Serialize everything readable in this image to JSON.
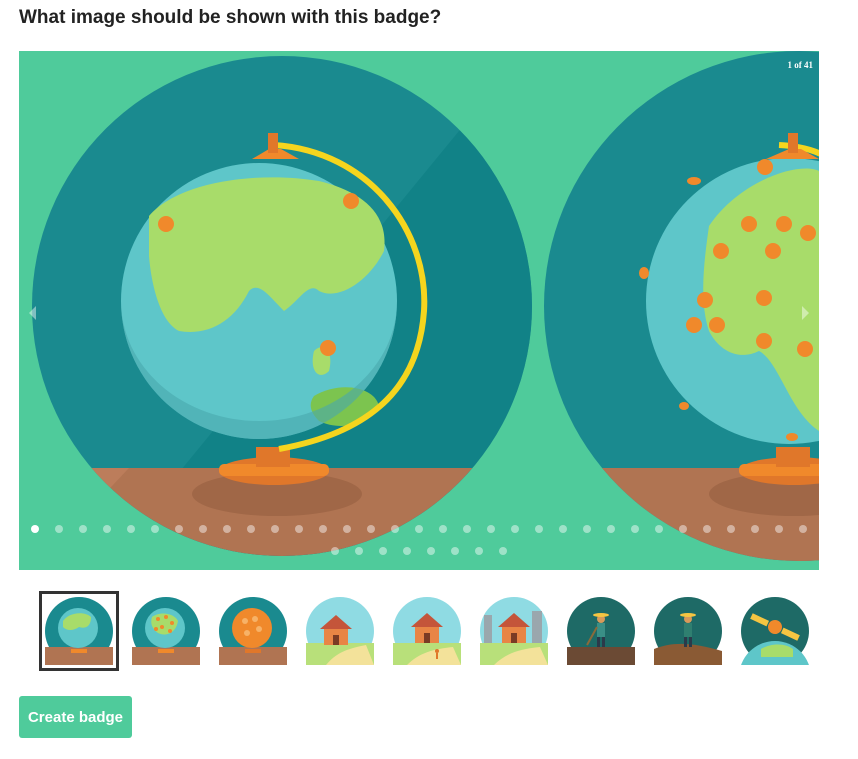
{
  "title": "What image should be shown with this badge?",
  "carousel": {
    "counter": "1 of 41",
    "total_slides": 41,
    "current_slide": 1,
    "prev_icon": "chevron-left-icon",
    "next_icon": "chevron-right-icon"
  },
  "thumbnails": [
    {
      "name": "globe-world",
      "selected": true
    },
    {
      "name": "globe-dots"
    },
    {
      "name": "globe-orange"
    },
    {
      "name": "house-sky"
    },
    {
      "name": "house-family"
    },
    {
      "name": "house-city"
    },
    {
      "name": "farmer-night"
    },
    {
      "name": "farmer-hill"
    },
    {
      "name": "satellite-earth"
    }
  ],
  "actions": {
    "create_label": "Create badge"
  },
  "colors": {
    "accent": "#4fcb9b",
    "teal_dark": "#1a8a8f",
    "ocean": "#5ec6c9",
    "land": "#a8dc6a",
    "orange": "#f0892b",
    "stand_brown": "#b07452"
  }
}
